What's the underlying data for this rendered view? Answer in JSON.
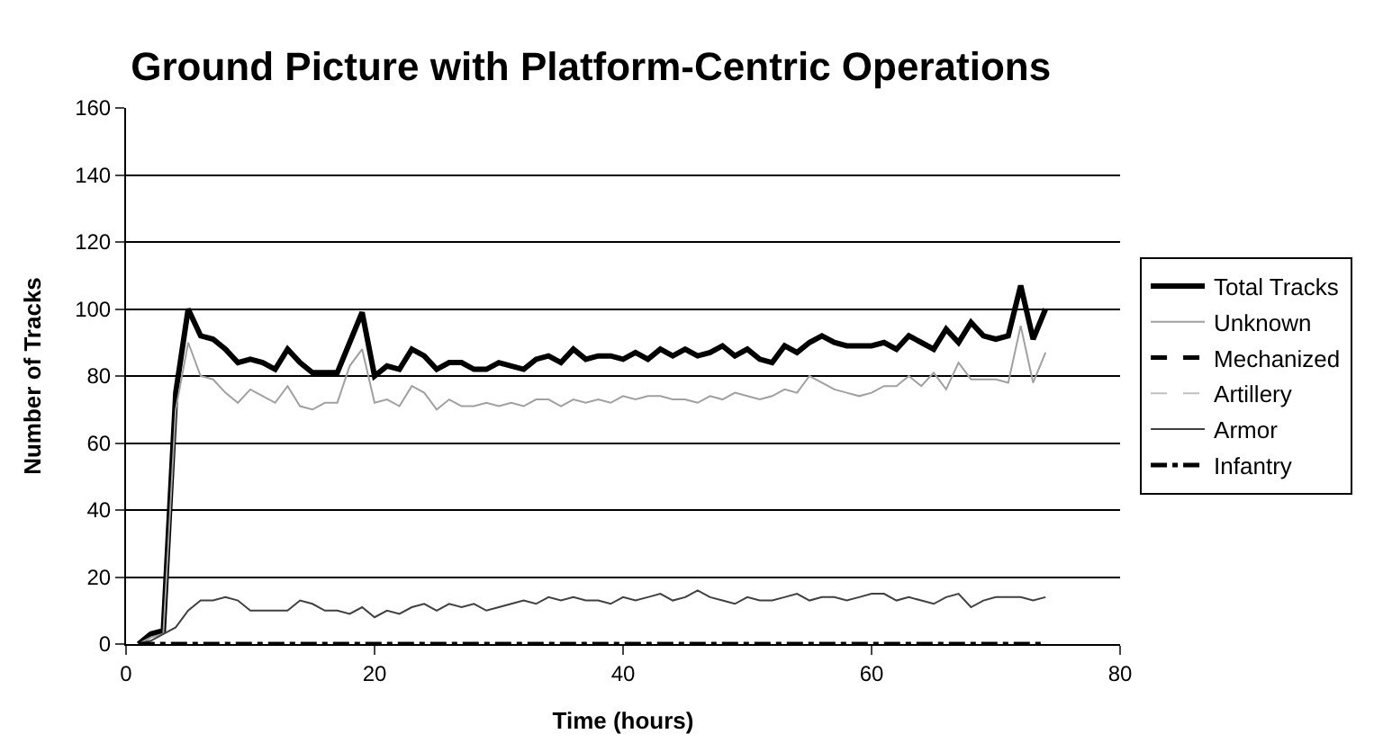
{
  "chart_data": {
    "type": "line",
    "title": "Ground Picture with Platform-Centric Operations",
    "xlabel": "Time (hours)",
    "ylabel": "Number of Tracks",
    "x": [
      1,
      2,
      3,
      4,
      5,
      6,
      7,
      8,
      9,
      10,
      11,
      12,
      13,
      14,
      15,
      16,
      17,
      18,
      19,
      20,
      21,
      22,
      23,
      24,
      25,
      26,
      27,
      28,
      29,
      30,
      31,
      32,
      33,
      34,
      35,
      36,
      37,
      38,
      39,
      40,
      41,
      42,
      43,
      44,
      45,
      46,
      47,
      48,
      49,
      50,
      51,
      52,
      53,
      54,
      55,
      56,
      57,
      58,
      59,
      60,
      61,
      62,
      63,
      64,
      65,
      66,
      67,
      68,
      69,
      70,
      71,
      72,
      73,
      74
    ],
    "xlim": [
      0,
      80
    ],
    "xticks": [
      0,
      20,
      40,
      60,
      80
    ],
    "ylim": [
      0,
      160
    ],
    "yticks": [
      0,
      20,
      40,
      60,
      80,
      100,
      120,
      140,
      160
    ],
    "grid": "y",
    "legend": "right",
    "series": [
      {
        "name": "Total Tracks",
        "color": "#000000",
        "line_style": "solid",
        "values": [
          0,
          3,
          4,
          75,
          100,
          92,
          91,
          88,
          84,
          85,
          84,
          82,
          88,
          84,
          81,
          81,
          81,
          90,
          99,
          80,
          83,
          82,
          88,
          86,
          82,
          84,
          84,
          82,
          82,
          84,
          83,
          82,
          85,
          86,
          84,
          88,
          85,
          86,
          86,
          85,
          87,
          85,
          88,
          86,
          88,
          86,
          87,
          89,
          86,
          88,
          85,
          84,
          89,
          87,
          90,
          92,
          90,
          89,
          89,
          89,
          90,
          88,
          92,
          90,
          88,
          94,
          90,
          96,
          92,
          91,
          92,
          107,
          91,
          100
        ]
      },
      {
        "name": "Unknown",
        "color": "#a0a0a0",
        "line_style": "solid",
        "values": [
          0,
          2,
          3,
          70,
          90,
          80,
          79,
          75,
          72,
          76,
          74,
          72,
          77,
          71,
          70,
          72,
          72,
          83,
          88,
          72,
          73,
          71,
          77,
          75,
          70,
          73,
          71,
          71,
          72,
          71,
          72,
          71,
          73,
          73,
          71,
          73,
          72,
          73,
          72,
          74,
          73,
          74,
          74,
          73,
          73,
          72,
          74,
          73,
          75,
          74,
          73,
          74,
          76,
          75,
          80,
          78,
          76,
          75,
          74,
          75,
          77,
          77,
          80,
          77,
          81,
          76,
          84,
          79,
          79,
          79,
          78,
          95,
          78,
          87
        ]
      },
      {
        "name": "Mechanized",
        "color": "#000000",
        "line_style": "dashed",
        "values": [
          null,
          null,
          null,
          null,
          null,
          null,
          null,
          null,
          null,
          null,
          null,
          null,
          null,
          null,
          null,
          null,
          null,
          null,
          null,
          null,
          null,
          null,
          null,
          null,
          null,
          null,
          null,
          null,
          null,
          null,
          null,
          null,
          null,
          null,
          null,
          null,
          null,
          null,
          null,
          null,
          null,
          null,
          null,
          null,
          null,
          null,
          null,
          null,
          null,
          null,
          null,
          null,
          null,
          null,
          null,
          null,
          null,
          null,
          null,
          null,
          null,
          null,
          null,
          null,
          null,
          null,
          null,
          null,
          null,
          null,
          null,
          null,
          null,
          null
        ]
      },
      {
        "name": "Artillery",
        "color": "#c0c0c0",
        "line_style": "dashed",
        "values": [
          null,
          null,
          null,
          null,
          null,
          null,
          null,
          null,
          null,
          null,
          null,
          null,
          null,
          null,
          null,
          null,
          null,
          null,
          null,
          null,
          null,
          null,
          null,
          null,
          null,
          null,
          null,
          null,
          null,
          null,
          null,
          null,
          null,
          null,
          null,
          null,
          null,
          null,
          null,
          null,
          null,
          null,
          null,
          null,
          null,
          null,
          null,
          null,
          null,
          null,
          null,
          null,
          null,
          null,
          null,
          null,
          null,
          null,
          null,
          null,
          null,
          null,
          null,
          null,
          null,
          null,
          null,
          null,
          null,
          null,
          null,
          null,
          null,
          null
        ]
      },
      {
        "name": "Armor",
        "color": "#404040",
        "line_style": "solid",
        "values": [
          0,
          1,
          3,
          5,
          10,
          13,
          13,
          14,
          13,
          10,
          10,
          10,
          10,
          13,
          12,
          10,
          10,
          9,
          11,
          8,
          10,
          9,
          11,
          12,
          10,
          12,
          11,
          12,
          10,
          11,
          12,
          13,
          12,
          14,
          13,
          14,
          13,
          13,
          12,
          14,
          13,
          14,
          15,
          13,
          14,
          16,
          14,
          13,
          12,
          14,
          13,
          13,
          14,
          15,
          13,
          14,
          14,
          13,
          14,
          15,
          15,
          13,
          14,
          13,
          12,
          14,
          15,
          11,
          13,
          14,
          14,
          14,
          13,
          14
        ]
      },
      {
        "name": "Infantry",
        "color": "#000000",
        "line_style": "dashdot",
        "values": [
          0,
          0,
          0,
          0,
          0,
          0,
          0,
          0,
          0,
          0,
          0,
          0,
          0,
          0,
          0,
          0,
          0,
          0,
          0,
          0,
          0,
          0,
          0,
          0,
          0,
          0,
          0,
          0,
          0,
          0,
          0,
          0,
          0,
          0,
          0,
          0,
          0,
          0,
          0,
          0,
          0,
          0,
          0,
          0,
          0,
          0,
          0,
          0,
          0,
          0,
          0,
          0,
          0,
          0,
          0,
          0,
          0,
          0,
          0,
          0,
          0,
          0,
          0,
          0,
          0,
          0,
          0,
          0,
          0,
          0,
          0,
          0,
          0,
          0
        ]
      }
    ]
  }
}
